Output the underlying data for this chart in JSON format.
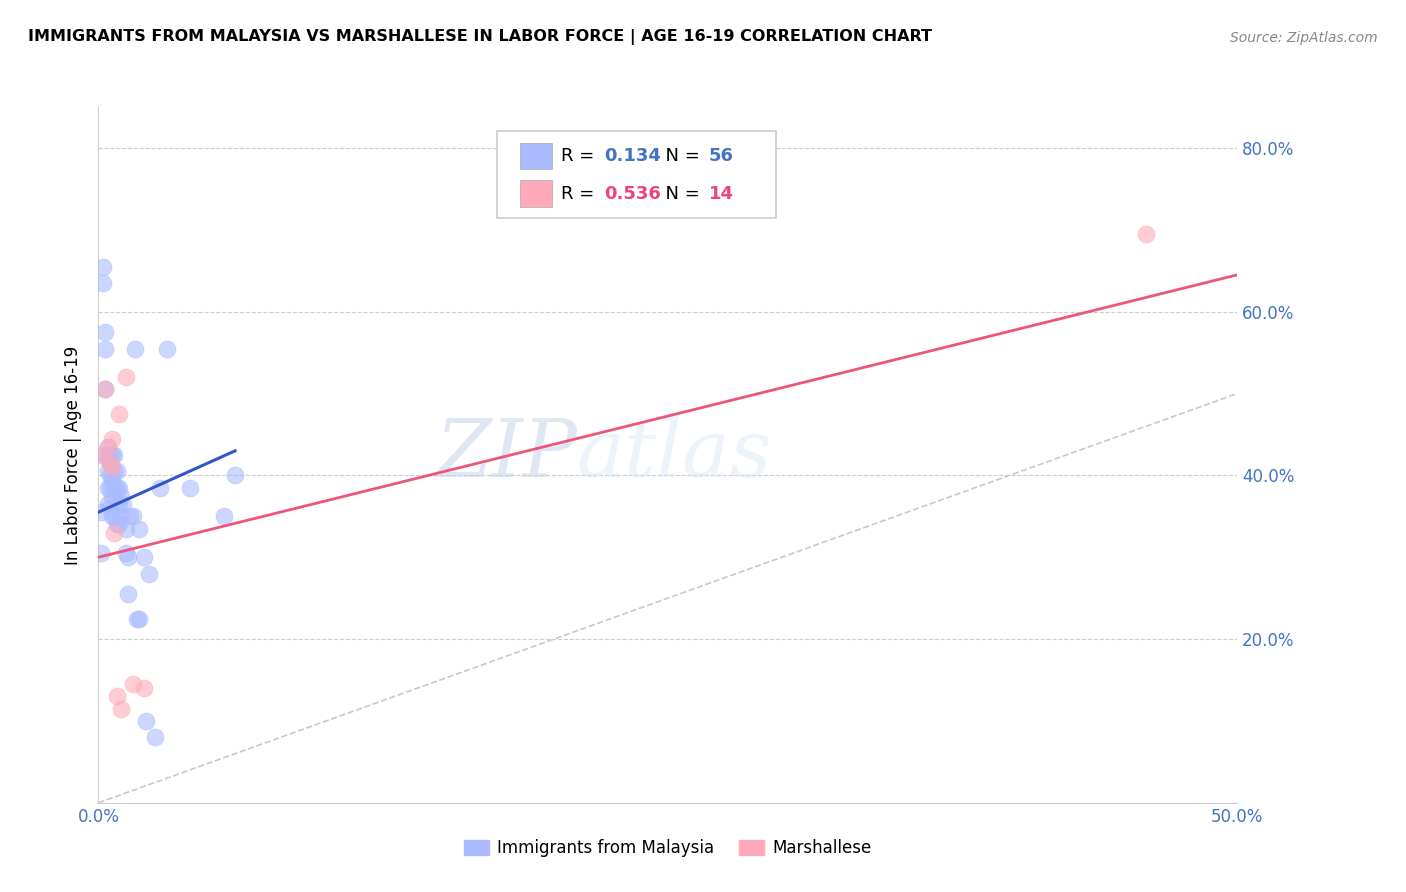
{
  "title": "IMMIGRANTS FROM MALAYSIA VS MARSHALLESE IN LABOR FORCE | AGE 16-19 CORRELATION CHART",
  "source": "Source: ZipAtlas.com",
  "ylabel": "In Labor Force | Age 16-19",
  "xlim": [
    0.0,
    0.5
  ],
  "ylim": [
    0.0,
    0.85
  ],
  "xticks": [
    0.0,
    0.1,
    0.2,
    0.3,
    0.4,
    0.5
  ],
  "xtick_labels": [
    "0.0%",
    "",
    "",
    "",
    "",
    "50.0%"
  ],
  "yticks": [
    0.0,
    0.2,
    0.4,
    0.6,
    0.8
  ],
  "ytick_labels_right": [
    "",
    "20.0%",
    "40.0%",
    "60.0%",
    "80.0%"
  ],
  "axis_color": "#4472C4",
  "malaysia_color": "#aabbff",
  "marshallese_color": "#ffaabb",
  "malaysia_R": 0.134,
  "malaysia_N": 56,
  "marshallese_R": 0.536,
  "marshallese_N": 14,
  "watermark_zip": "ZIP",
  "watermark_atlas": "atlas",
  "malaysia_scatter_x": [
    0.001,
    0.001,
    0.002,
    0.002,
    0.003,
    0.003,
    0.003,
    0.003,
    0.004,
    0.004,
    0.004,
    0.004,
    0.004,
    0.005,
    0.005,
    0.005,
    0.005,
    0.005,
    0.006,
    0.006,
    0.006,
    0.006,
    0.006,
    0.007,
    0.007,
    0.007,
    0.007,
    0.008,
    0.008,
    0.008,
    0.008,
    0.009,
    0.009,
    0.009,
    0.01,
    0.01,
    0.011,
    0.012,
    0.012,
    0.013,
    0.013,
    0.014,
    0.015,
    0.016,
    0.017,
    0.018,
    0.018,
    0.02,
    0.021,
    0.022,
    0.025,
    0.027,
    0.03,
    0.04,
    0.055,
    0.06
  ],
  "malaysia_scatter_y": [
    0.355,
    0.305,
    0.635,
    0.655,
    0.575,
    0.555,
    0.505,
    0.425,
    0.435,
    0.42,
    0.405,
    0.385,
    0.365,
    0.425,
    0.415,
    0.4,
    0.385,
    0.36,
    0.425,
    0.41,
    0.395,
    0.375,
    0.35,
    0.425,
    0.405,
    0.385,
    0.35,
    0.405,
    0.385,
    0.365,
    0.34,
    0.385,
    0.365,
    0.34,
    0.375,
    0.35,
    0.365,
    0.335,
    0.305,
    0.3,
    0.255,
    0.35,
    0.35,
    0.555,
    0.225,
    0.335,
    0.225,
    0.3,
    0.1,
    0.28,
    0.08,
    0.385,
    0.555,
    0.385,
    0.35,
    0.4
  ],
  "marshallese_scatter_x": [
    0.001,
    0.003,
    0.004,
    0.005,
    0.006,
    0.006,
    0.007,
    0.008,
    0.009,
    0.01,
    0.012,
    0.015,
    0.02,
    0.46
  ],
  "marshallese_scatter_y": [
    0.425,
    0.505,
    0.435,
    0.415,
    0.445,
    0.41,
    0.33,
    0.13,
    0.475,
    0.115,
    0.52,
    0.145,
    0.14,
    0.695
  ],
  "malaysia_line_x": [
    0.0,
    0.06
  ],
  "malaysia_line_y": [
    0.355,
    0.43
  ],
  "marshallese_line_x": [
    0.0,
    0.5
  ],
  "marshallese_line_y": [
    0.3,
    0.645
  ],
  "diagonal_line_x": [
    0.0,
    0.5
  ],
  "diagonal_line_y": [
    0.0,
    0.5
  ]
}
